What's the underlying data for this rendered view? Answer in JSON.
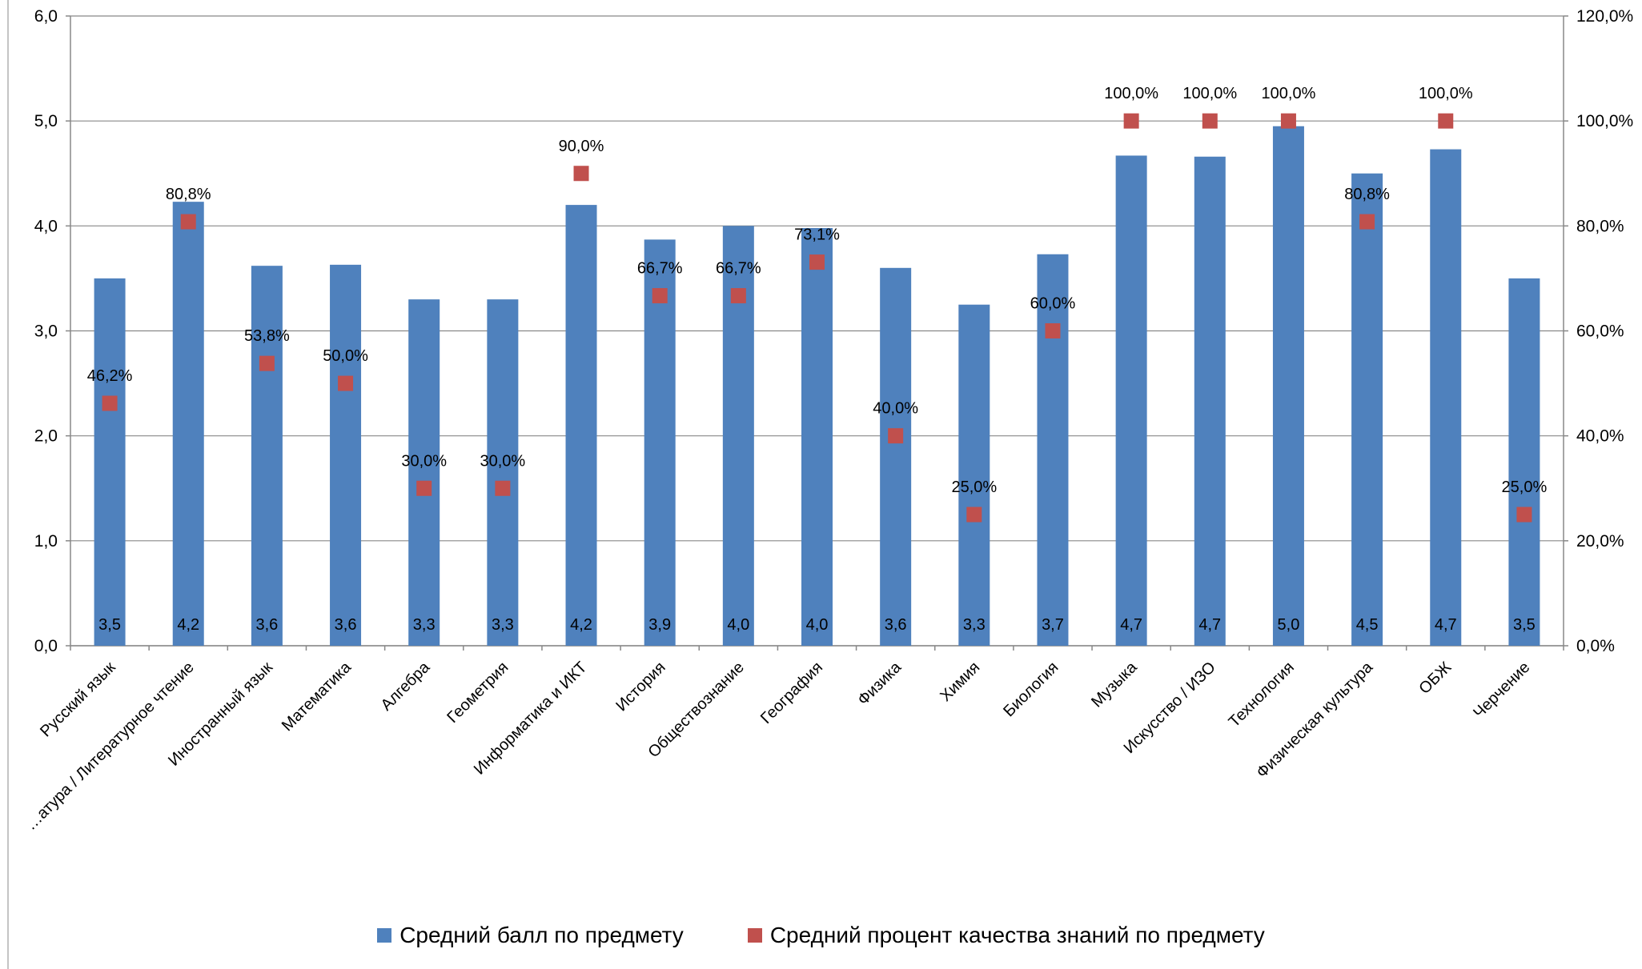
{
  "chart_data": {
    "type": "bar",
    "title": "",
    "xlabel": "",
    "ylabel": "",
    "ylim": [
      0,
      6
    ],
    "y2lim": [
      0,
      120
    ],
    "y_ticks": [
      "0,0",
      "1,0",
      "2,0",
      "3,0",
      "4,0",
      "5,0",
      "6,0"
    ],
    "y2_ticks": [
      "0,0%",
      "20,0%",
      "40,0%",
      "60,0%",
      "80,0%",
      "100,0%",
      "120,0%"
    ],
    "grid": true,
    "legend_position": "bottom",
    "categories": [
      "Русский язык",
      "…атура / Литературное чтение",
      "Иностранный язык",
      "Математика",
      "Алгебра",
      "Геометрия",
      "Информатика и ИКТ",
      "История",
      "Обществознание",
      "География",
      "Физика",
      "Химия",
      "Биология",
      "Музыка",
      "Искусство / ИЗО",
      "Технология",
      "Физическая культура",
      "ОБЖ",
      "Черчение"
    ],
    "series": [
      {
        "name": "Средний балл по предмету",
        "type": "bar",
        "axis": "left",
        "color": "#4f81bd",
        "values": [
          3.5,
          4.23,
          3.62,
          3.63,
          3.3,
          3.3,
          4.2,
          3.87,
          4.0,
          3.98,
          3.6,
          3.25,
          3.73,
          4.67,
          4.66,
          4.95,
          4.5,
          4.73,
          3.5
        ],
        "labels": [
          "3,5",
          "4,2",
          "3,6",
          "3,6",
          "3,3",
          "3,3",
          "4,2",
          "3,9",
          "4,0",
          "4,0",
          "3,6",
          "3,3",
          "3,7",
          "4,7",
          "4,7",
          "5,0",
          "4,5",
          "4,7",
          "3,5"
        ]
      },
      {
        "name": "Средний процент качества знаний по предмету",
        "type": "scatter",
        "axis": "right",
        "color": "#c0504d",
        "values": [
          46.2,
          80.8,
          53.8,
          50.0,
          30.0,
          30.0,
          90.0,
          66.7,
          66.7,
          73.1,
          40.0,
          25.0,
          60.0,
          100.0,
          100.0,
          100.0,
          80.8,
          100.0,
          25.0
        ],
        "labels": [
          "46,2%",
          "80,8%",
          "53,8%",
          "50,0%",
          "30,0%",
          "30,0%",
          "90,0%",
          "66,7%",
          "66,7%",
          "73,1%",
          "40,0%",
          "25,0%",
          "60,0%",
          "100,0%",
          "100,0%",
          "100,0%",
          "80,8%",
          "100,0%",
          "25,0%"
        ]
      }
    ]
  }
}
